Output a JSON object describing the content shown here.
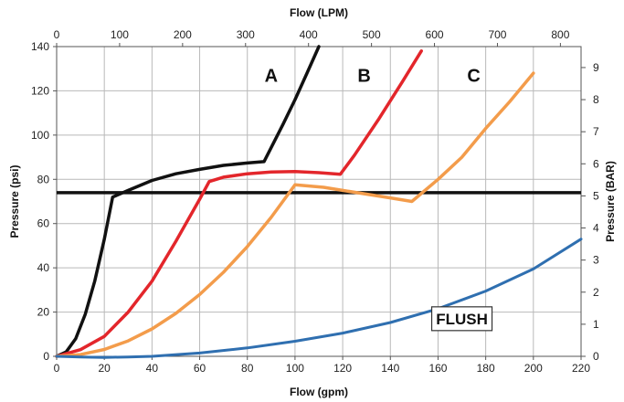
{
  "chart_data": {
    "type": "line",
    "xlabel": "Flow (gpm)",
    "x2label": "Flow (LPM)",
    "ylabel": "Pressure (psi)",
    "y2label": "Pressure (BAR)",
    "xlim": [
      0,
      220
    ],
    "x2lim": [
      0,
      832.8
    ],
    "ylim": [
      0,
      140
    ],
    "y2lim": [
      0,
      9.653
    ],
    "x_ticks": [
      0,
      20,
      40,
      60,
      80,
      100,
      120,
      140,
      160,
      180,
      200,
      220
    ],
    "x2_ticks": [
      0,
      100,
      200,
      300,
      400,
      500,
      600,
      700,
      800
    ],
    "y_ticks": [
      0,
      20,
      40,
      60,
      80,
      100,
      120,
      140
    ],
    "y2_ticks": [
      0,
      1,
      2,
      3,
      4,
      5,
      6,
      7,
      8,
      9
    ],
    "grid": true,
    "reference_line": {
      "y": 74,
      "color": "#111111"
    },
    "series": [
      {
        "name": "A",
        "color": "#111111",
        "x": [
          0,
          4,
          8,
          12,
          16,
          20,
          23.5,
          30,
          40,
          50,
          60,
          70,
          80,
          87,
          95,
          100,
          105,
          110
        ],
        "y": [
          0,
          2,
          8,
          19,
          34,
          53,
          72,
          75,
          79.5,
          82.5,
          84.5,
          86.3,
          87.4,
          88,
          105,
          116,
          128,
          140
        ]
      },
      {
        "name": "B",
        "color": "#e3262b",
        "x": [
          0,
          10,
          20,
          30,
          40,
          50,
          60,
          64,
          70,
          80,
          90,
          100,
          110,
          119,
          125,
          135,
          145,
          153
        ],
        "y": [
          0,
          3,
          9,
          20,
          34,
          52,
          71,
          79,
          81,
          82.5,
          83.3,
          83.5,
          83,
          82.3,
          91,
          107,
          124,
          138
        ]
      },
      {
        "name": "C",
        "color": "#f39c4b",
        "x": [
          0,
          10,
          20,
          30,
          40,
          50,
          60,
          70,
          80,
          90,
          100,
          112,
          120,
          130,
          140,
          149,
          160,
          170,
          180,
          190,
          200
        ],
        "y": [
          0,
          0.8,
          3.1,
          7,
          12.4,
          19.4,
          27.9,
          38,
          49.6,
          62.8,
          77.5,
          76.4,
          75,
          73.3,
          71.6,
          70,
          80,
          90,
          103,
          115,
          128
        ]
      },
      {
        "name": "FLUSH",
        "color": "#2f6fb0",
        "x": [
          0,
          10,
          20,
          30,
          40,
          60,
          80,
          100,
          120,
          140,
          160,
          180,
          200,
          220
        ],
        "y": [
          0,
          -0.3,
          -0.5,
          -0.3,
          0,
          1.5,
          3.8,
          6.8,
          10.5,
          15.3,
          21.5,
          29.5,
          39.5,
          53
        ]
      }
    ],
    "annotations": [
      {
        "text": "A",
        "x": 90,
        "y": 127
      },
      {
        "text": "B",
        "x": 129,
        "y": 127
      },
      {
        "text": "C",
        "x": 175,
        "y": 127
      },
      {
        "text": "FLUSH",
        "x": 170,
        "y": 17,
        "boxed": true
      }
    ]
  }
}
